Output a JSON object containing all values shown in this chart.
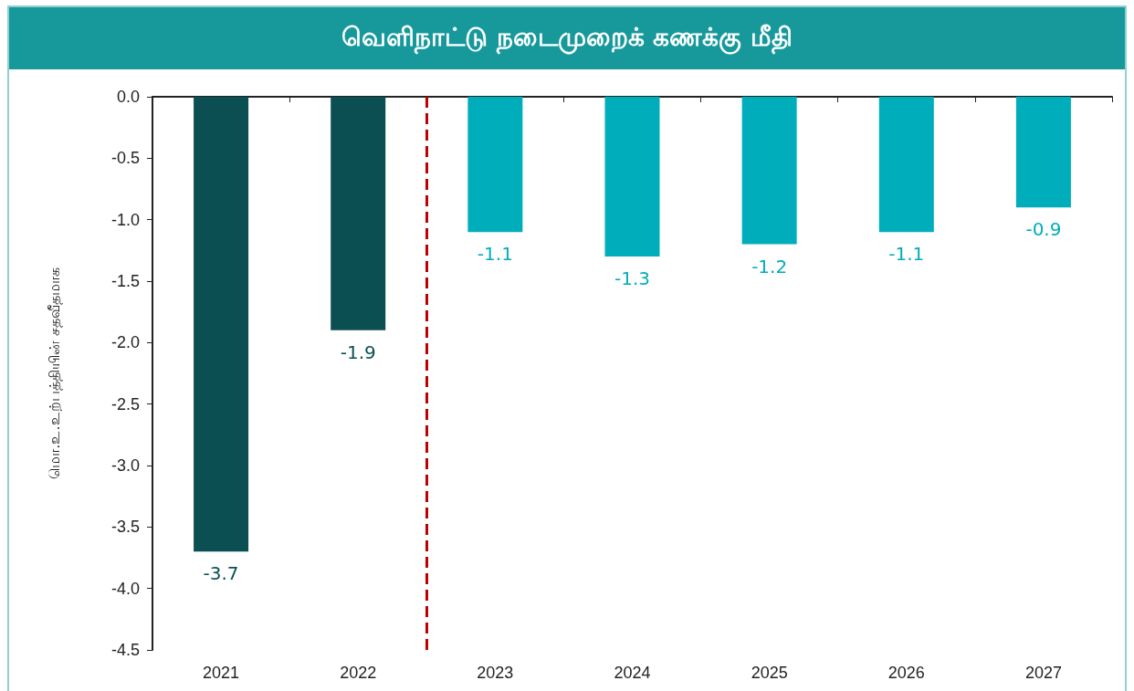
{
  "chart_data": {
    "type": "bar",
    "title": "வெளிநாட்டு நடைமுறைக் கணக்கு மீதி",
    "ylabel": "மொ.உ.உற்பத்தியின் சதவீதமாக",
    "x": [
      2021,
      2022,
      2023,
      2024,
      2025,
      2026,
      2027
    ],
    "xlim": [
      2020.5,
      2027.5
    ],
    "xticks": [
      2021,
      2022,
      2023,
      2024,
      2025,
      2026,
      2027
    ],
    "values": [
      -3.7,
      -1.9,
      -1.1,
      -1.3,
      -1.2,
      -1.1,
      -0.9
    ],
    "colors": [
      "#0b4f52",
      "#0b4f52",
      "#00adbb",
      "#00adbb",
      "#00adbb",
      "#00adbb",
      "#00adbb"
    ],
    "data_labels": true,
    "ylim": [
      -4.5,
      0
    ],
    "yticks": [
      {
        "value": 0,
        "label": "0.0"
      },
      -0.5,
      {
        "value": -1,
        "label": "-1.0"
      },
      -1.5,
      {
        "value": -2,
        "label": "-2.0"
      },
      -2.5,
      {
        "value": -3,
        "label": "-3.0"
      },
      -3.5,
      {
        "value": -4,
        "label": "-4.0"
      },
      -4.5
    ],
    "ref_lines": [
      {
        "axis": "x",
        "value": 2022.5,
        "color": "#c00000",
        "line_style": "dashed"
      }
    ],
    "grid": false
  }
}
